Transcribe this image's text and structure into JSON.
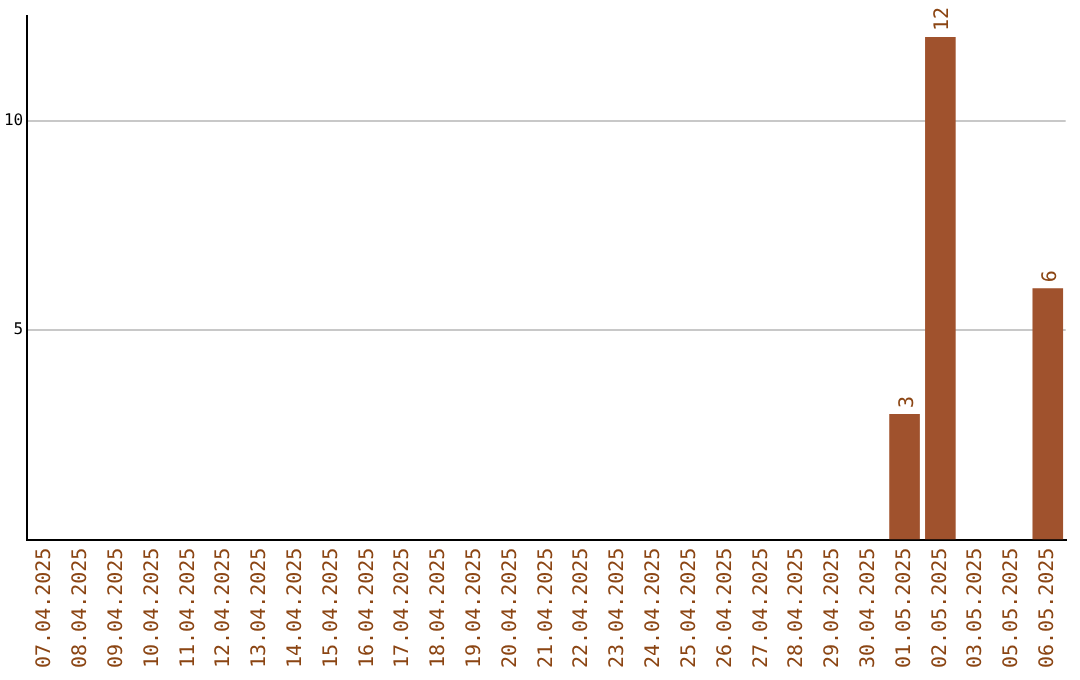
{
  "chart_data": {
    "type": "bar",
    "categories": [
      "07.04.2025",
      "08.04.2025",
      "09.04.2025",
      "10.04.2025",
      "11.04.2025",
      "12.04.2025",
      "13.04.2025",
      "14.04.2025",
      "15.04.2025",
      "16.04.2025",
      "17.04.2025",
      "18.04.2025",
      "19.04.2025",
      "20.04.2025",
      "21.04.2025",
      "22.04.2025",
      "23.04.2025",
      "24.04.2025",
      "25.04.2025",
      "26.04.2025",
      "27.04.2025",
      "28.04.2025",
      "29.04.2025",
      "30.04.2025",
      "01.05.2025",
      "02.05.2025",
      "03.05.2025",
      "05.05.2025",
      "06.05.2025"
    ],
    "values": [
      0,
      0,
      0,
      0,
      0,
      0,
      0,
      0,
      0,
      0,
      0,
      0,
      0,
      0,
      0,
      0,
      0,
      0,
      0,
      0,
      0,
      0,
      0,
      0,
      3,
      12,
      0,
      0,
      6
    ],
    "value_labels": [
      null,
      null,
      null,
      null,
      null,
      null,
      null,
      null,
      null,
      null,
      null,
      null,
      null,
      null,
      null,
      null,
      null,
      null,
      null,
      null,
      null,
      null,
      null,
      null,
      "3",
      "12",
      null,
      null,
      "6"
    ],
    "color": "#a0522d",
    "ylim": [
      0,
      12.5
    ],
    "yticks": [
      5,
      10
    ],
    "grid": "y",
    "legend": false
  }
}
